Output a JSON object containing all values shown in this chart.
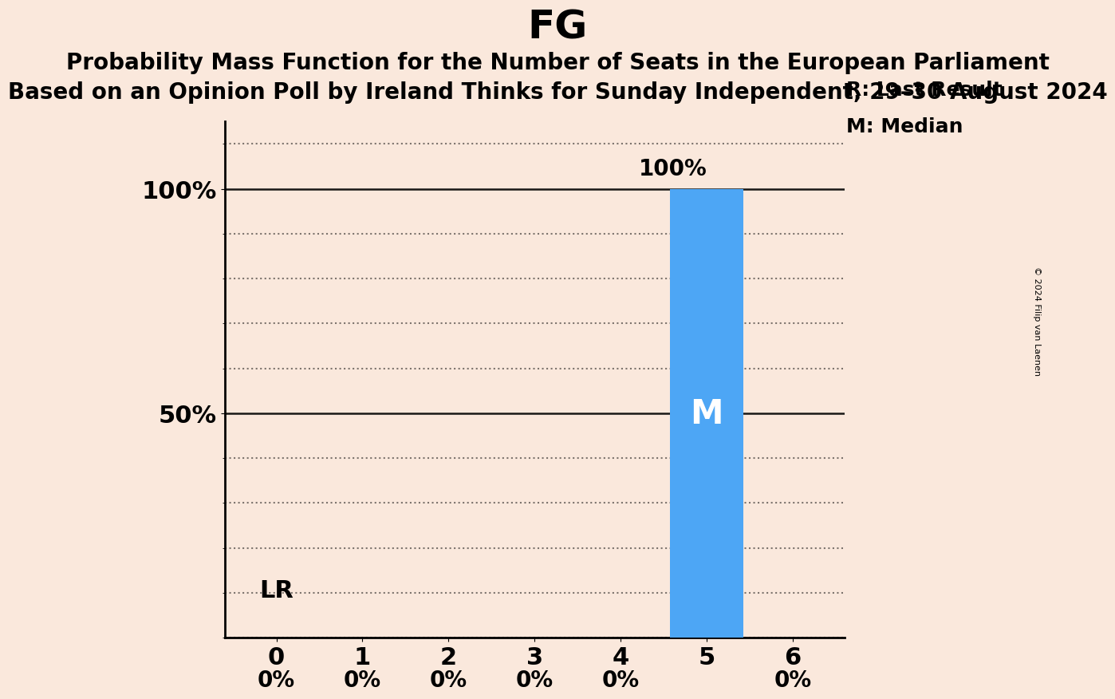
{
  "title": "FG",
  "subtitle1": "Probability Mass Function for the Number of Seats in the European Parliament",
  "subtitle2": "Based on an Opinion Poll by Ireland Thinks for Sunday Independent, 29–30 August 2024",
  "copyright": "© 2024 Filip van Laenen",
  "x_values": [
    0,
    1,
    2,
    3,
    4,
    5,
    6
  ],
  "probabilities": [
    0,
    0,
    0,
    0,
    0,
    100,
    0
  ],
  "bar_color": "#4DA6F5",
  "background_color": "#FAE8DC",
  "median": 5,
  "last_result": 0,
  "legend_r": "R: Last Result",
  "legend_m": "M: Median",
  "ylim_max": 115,
  "yticks": [
    50,
    100
  ],
  "ytick_labels": [
    "50%",
    "100%"
  ],
  "title_fontsize": 36,
  "subtitle_fontsize": 20,
  "tick_fontsize": 22,
  "bar_label_fontsize": 20,
  "annotation_fontsize": 22,
  "legend_fontsize": 18,
  "median_label_fontsize": 30,
  "lr_fontsize": 22
}
